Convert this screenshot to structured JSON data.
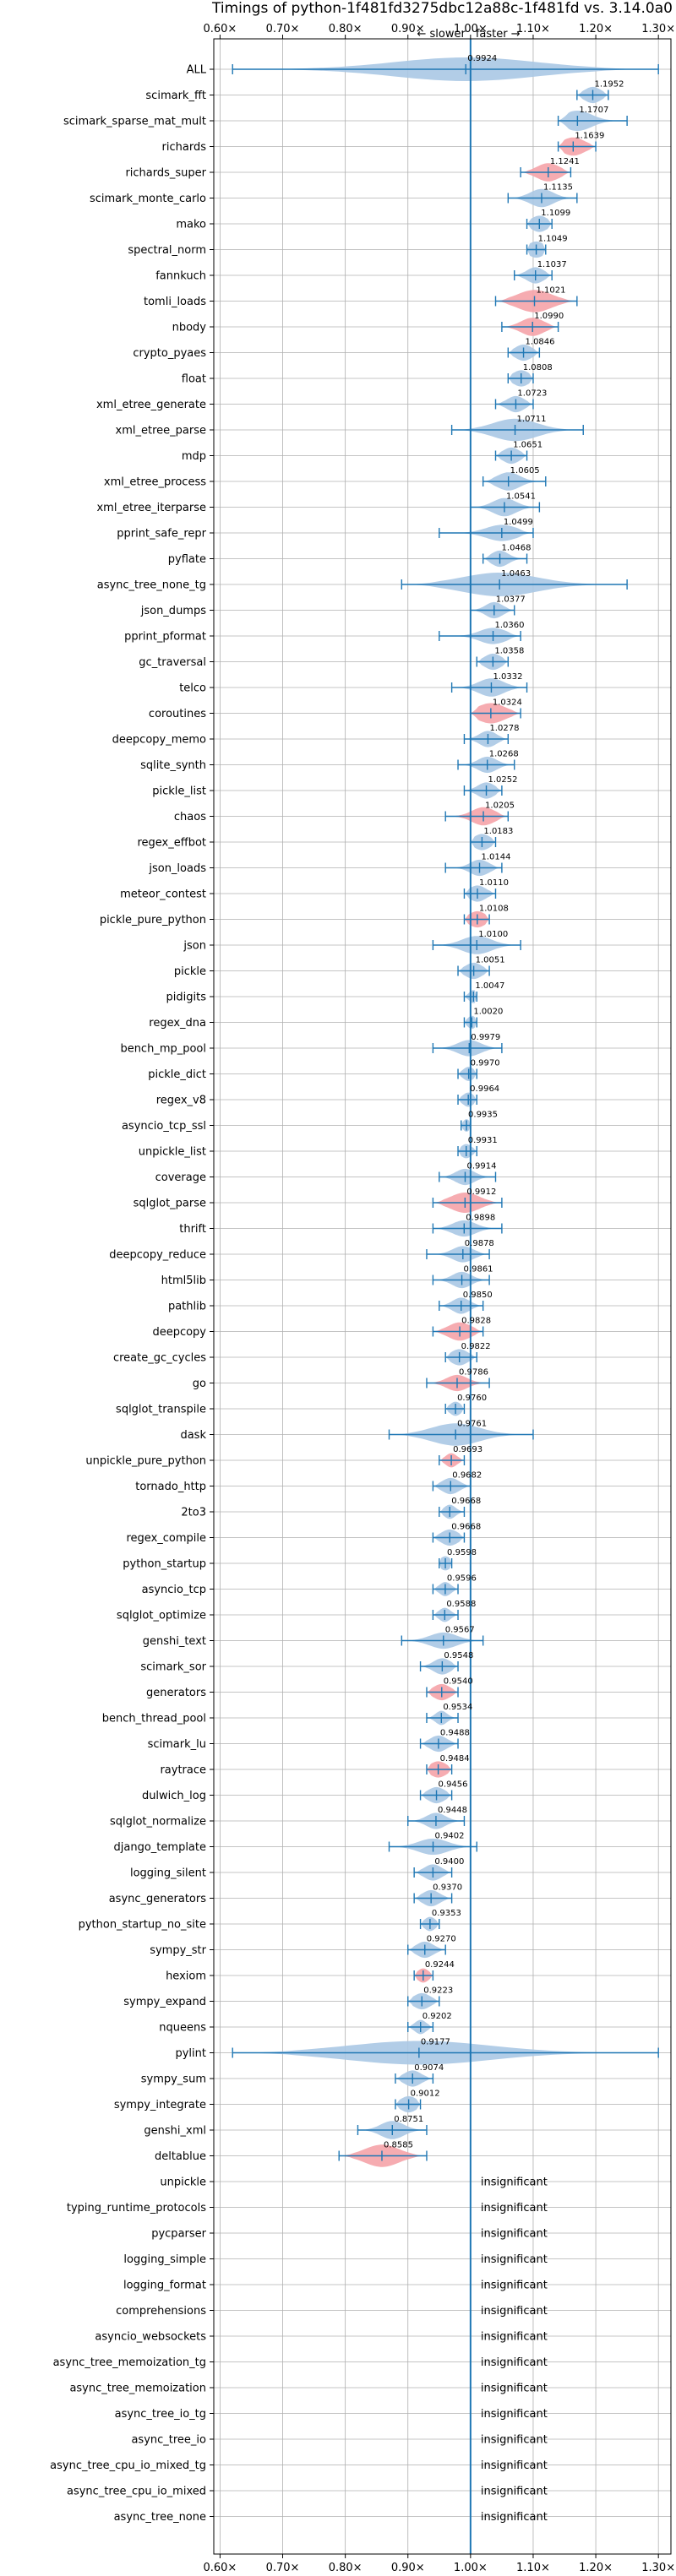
{
  "chart_data": {
    "type": "violin",
    "title": "Timings of python-1f481fd3275dbc12a88c-1f481fd vs. 3.14.0a0",
    "xlabel": "",
    "ylabel": "",
    "x_ticks": [
      "0.60×",
      "0.70×",
      "0.80×",
      "0.90×",
      "1.00×",
      "1.10×",
      "1.20×",
      "1.30×"
    ],
    "x_tick_values": [
      0.6,
      0.7,
      0.8,
      0.9,
      1.0,
      1.1,
      1.2,
      1.3
    ],
    "xlim": [
      0.59,
      1.32
    ],
    "grid": true,
    "reference_line": 1.0,
    "direction_labels": {
      "slower": "slower",
      "faster": "faster"
    },
    "insignificant_label": "insignificant",
    "colors": {
      "blue_violin": "#aac8e4",
      "red_violin": "#f5a3a8",
      "line": "#1f77b4",
      "grid": "#b0b0b0"
    },
    "benchmarks": [
      {
        "name": "ALL",
        "value": 0.9924,
        "label": "0.9924",
        "lo": 0.62,
        "hi": 1.3,
        "w": 0.1,
        "color": "blue"
      },
      {
        "name": "scimark_fft",
        "value": 1.1952,
        "label": "1.1952",
        "lo": 1.17,
        "hi": 1.22,
        "w": 0.03,
        "color": "blue"
      },
      {
        "name": "scimark_sparse_mat_mult",
        "value": 1.1707,
        "label": "1.1707",
        "lo": 1.14,
        "hi": 1.25,
        "w": 0.05,
        "color": "blue"
      },
      {
        "name": "richards",
        "value": 1.1639,
        "label": "1.1639",
        "lo": 1.14,
        "hi": 1.2,
        "w": 0.04,
        "color": "red"
      },
      {
        "name": "richards_super",
        "value": 1.1241,
        "label": "1.1241",
        "lo": 1.08,
        "hi": 1.16,
        "w": 0.04,
        "color": "red"
      },
      {
        "name": "scimark_monte_carlo",
        "value": 1.1135,
        "label": "1.1135",
        "lo": 1.06,
        "hi": 1.17,
        "w": 0.04,
        "color": "blue"
      },
      {
        "name": "mako",
        "value": 1.1099,
        "label": "1.1099",
        "lo": 1.09,
        "hi": 1.13,
        "w": 0.03,
        "color": "blue"
      },
      {
        "name": "spectral_norm",
        "value": 1.1049,
        "label": "1.1049",
        "lo": 1.09,
        "hi": 1.12,
        "w": 0.03,
        "color": "blue"
      },
      {
        "name": "fannkuch",
        "value": 1.1037,
        "label": "1.1037",
        "lo": 1.07,
        "hi": 1.13,
        "w": 0.03,
        "color": "blue"
      },
      {
        "name": "tomli_loads",
        "value": 1.1021,
        "label": "1.1021",
        "lo": 1.04,
        "hi": 1.17,
        "w": 0.06,
        "color": "red"
      },
      {
        "name": "nbody",
        "value": 1.099,
        "label": "1.0990",
        "lo": 1.05,
        "hi": 1.14,
        "w": 0.04,
        "color": "red"
      },
      {
        "name": "crypto_pyaes",
        "value": 1.0846,
        "label": "1.0846",
        "lo": 1.06,
        "hi": 1.11,
        "w": 0.03,
        "color": "blue"
      },
      {
        "name": "float",
        "value": 1.0808,
        "label": "1.0808",
        "lo": 1.06,
        "hi": 1.1,
        "w": 0.03,
        "color": "blue"
      },
      {
        "name": "xml_etree_generate",
        "value": 1.0723,
        "label": "1.0723",
        "lo": 1.04,
        "hi": 1.1,
        "w": 0.03,
        "color": "blue"
      },
      {
        "name": "xml_etree_parse",
        "value": 1.0711,
        "label": "1.0711",
        "lo": 0.97,
        "hi": 1.18,
        "w": 0.06,
        "color": "blue"
      },
      {
        "name": "mdp",
        "value": 1.0651,
        "label": "1.0651",
        "lo": 1.04,
        "hi": 1.09,
        "w": 0.03,
        "color": "blue"
      },
      {
        "name": "xml_etree_process",
        "value": 1.0605,
        "label": "1.0605",
        "lo": 1.02,
        "hi": 1.12,
        "w": 0.04,
        "color": "blue"
      },
      {
        "name": "xml_etree_iterparse",
        "value": 1.0541,
        "label": "1.0541",
        "lo": 1.0,
        "hi": 1.11,
        "w": 0.04,
        "color": "blue"
      },
      {
        "name": "pprint_safe_repr",
        "value": 1.0499,
        "label": "1.0499",
        "lo": 0.95,
        "hi": 1.1,
        "w": 0.03,
        "color": "blue"
      },
      {
        "name": "pyflate",
        "value": 1.0468,
        "label": "1.0468",
        "lo": 1.02,
        "hi": 1.09,
        "w": 0.03,
        "color": "blue"
      },
      {
        "name": "async_tree_none_tg",
        "value": 1.0463,
        "label": "1.0463",
        "lo": 0.89,
        "hi": 1.25,
        "w": 0.07,
        "color": "blue"
      },
      {
        "name": "json_dumps",
        "value": 1.0377,
        "label": "1.0377",
        "lo": 1.0,
        "hi": 1.07,
        "w": 0.03,
        "color": "blue"
      },
      {
        "name": "pprint_pformat",
        "value": 1.036,
        "label": "1.0360",
        "lo": 0.95,
        "hi": 1.08,
        "w": 0.03,
        "color": "blue"
      },
      {
        "name": "gc_traversal",
        "value": 1.0358,
        "label": "1.0358",
        "lo": 1.01,
        "hi": 1.06,
        "w": 0.03,
        "color": "blue"
      },
      {
        "name": "telco",
        "value": 1.0332,
        "label": "1.0332",
        "lo": 0.97,
        "hi": 1.09,
        "w": 0.04,
        "color": "blue"
      },
      {
        "name": "coroutines",
        "value": 1.0324,
        "label": "1.0324",
        "lo": 1.0,
        "hi": 1.08,
        "w": 0.05,
        "color": "red"
      },
      {
        "name": "deepcopy_memo",
        "value": 1.0278,
        "label": "1.0278",
        "lo": 0.99,
        "hi": 1.06,
        "w": 0.03,
        "color": "blue"
      },
      {
        "name": "sqlite_synth",
        "value": 1.0268,
        "label": "1.0268",
        "lo": 0.98,
        "hi": 1.07,
        "w": 0.03,
        "color": "blue"
      },
      {
        "name": "pickle_list",
        "value": 1.0252,
        "label": "1.0252",
        "lo": 0.99,
        "hi": 1.05,
        "w": 0.03,
        "color": "blue"
      },
      {
        "name": "chaos",
        "value": 1.0205,
        "label": "1.0205",
        "lo": 0.96,
        "hi": 1.06,
        "w": 0.04,
        "color": "red"
      },
      {
        "name": "regex_effbot",
        "value": 1.0183,
        "label": "1.0183",
        "lo": 1.0,
        "hi": 1.04,
        "w": 0.03,
        "color": "blue"
      },
      {
        "name": "json_loads",
        "value": 1.0144,
        "label": "1.0144",
        "lo": 0.96,
        "hi": 1.05,
        "w": 0.03,
        "color": "blue"
      },
      {
        "name": "meteor_contest",
        "value": 1.011,
        "label": "1.0110",
        "lo": 0.99,
        "hi": 1.04,
        "w": 0.03,
        "color": "blue"
      },
      {
        "name": "pickle_pure_python",
        "value": 1.0108,
        "label": "1.0108",
        "lo": 0.99,
        "hi": 1.03,
        "w": 0.03,
        "color": "red"
      },
      {
        "name": "json",
        "value": 1.01,
        "label": "1.0100",
        "lo": 0.94,
        "hi": 1.08,
        "w": 0.04,
        "color": "blue"
      },
      {
        "name": "pickle",
        "value": 1.0051,
        "label": "1.0051",
        "lo": 0.98,
        "hi": 1.03,
        "w": 0.03,
        "color": "blue"
      },
      {
        "name": "pidigits",
        "value": 1.0047,
        "label": "1.0047",
        "lo": 0.99,
        "hi": 1.01,
        "w": 0.015,
        "color": "blue"
      },
      {
        "name": "regex_dna",
        "value": 1.002,
        "label": "1.0020",
        "lo": 0.99,
        "hi": 1.01,
        "w": 0.015,
        "color": "blue"
      },
      {
        "name": "bench_mp_pool",
        "value": 0.9979,
        "label": "0.9979",
        "lo": 0.94,
        "hi": 1.05,
        "w": 0.03,
        "color": "blue"
      },
      {
        "name": "pickle_dict",
        "value": 0.997,
        "label": "0.9970",
        "lo": 0.98,
        "hi": 1.01,
        "w": 0.02,
        "color": "blue"
      },
      {
        "name": "regex_v8",
        "value": 0.9964,
        "label": "0.9964",
        "lo": 0.98,
        "hi": 1.01,
        "w": 0.02,
        "color": "blue"
      },
      {
        "name": "asyncio_tcp_ssl",
        "value": 0.9935,
        "label": "0.9935",
        "lo": 0.985,
        "hi": 1.0,
        "w": 0.012,
        "color": "blue"
      },
      {
        "name": "unpickle_list",
        "value": 0.9931,
        "label": "0.9931",
        "lo": 0.98,
        "hi": 1.01,
        "w": 0.02,
        "color": "blue"
      },
      {
        "name": "coverage",
        "value": 0.9914,
        "label": "0.9914",
        "lo": 0.95,
        "hi": 1.04,
        "w": 0.03,
        "color": "blue"
      },
      {
        "name": "sqlglot_parse",
        "value": 0.9912,
        "label": "0.9912",
        "lo": 0.94,
        "hi": 1.05,
        "w": 0.05,
        "color": "red"
      },
      {
        "name": "thrift",
        "value": 0.9898,
        "label": "0.9898",
        "lo": 0.94,
        "hi": 1.05,
        "w": 0.03,
        "color": "blue"
      },
      {
        "name": "deepcopy_reduce",
        "value": 0.9878,
        "label": "0.9878",
        "lo": 0.93,
        "hi": 1.03,
        "w": 0.03,
        "color": "blue"
      },
      {
        "name": "html5lib",
        "value": 0.9861,
        "label": "0.9861",
        "lo": 0.94,
        "hi": 1.03,
        "w": 0.03,
        "color": "blue"
      },
      {
        "name": "pathlib",
        "value": 0.985,
        "label": "0.9850",
        "lo": 0.95,
        "hi": 1.02,
        "w": 0.03,
        "color": "blue"
      },
      {
        "name": "deepcopy",
        "value": 0.9828,
        "label": "0.9828",
        "lo": 0.94,
        "hi": 1.02,
        "w": 0.04,
        "color": "red"
      },
      {
        "name": "create_gc_cycles",
        "value": 0.9822,
        "label": "0.9822",
        "lo": 0.96,
        "hi": 1.01,
        "w": 0.03,
        "color": "blue"
      },
      {
        "name": "go",
        "value": 0.9786,
        "label": "0.9786",
        "lo": 0.93,
        "hi": 1.03,
        "w": 0.03,
        "color": "red"
      },
      {
        "name": "sqlglot_transpile",
        "value": 0.976,
        "label": "0.9760",
        "lo": 0.96,
        "hi": 0.99,
        "w": 0.02,
        "color": "blue"
      },
      {
        "name": "dask",
        "value": 0.9761,
        "label": "0.9761",
        "lo": 0.87,
        "hi": 1.1,
        "w": 0.06,
        "color": "blue"
      },
      {
        "name": "unpickle_pure_python",
        "value": 0.9693,
        "label": "0.9693",
        "lo": 0.95,
        "hi": 0.99,
        "w": 0.02,
        "color": "red"
      },
      {
        "name": "tornado_http",
        "value": 0.9682,
        "label": "0.9682",
        "lo": 0.94,
        "hi": 1.0,
        "w": 0.03,
        "color": "blue"
      },
      {
        "name": "2to3",
        "value": 0.9668,
        "label": "0.9668",
        "lo": 0.95,
        "hi": 0.99,
        "w": 0.02,
        "color": "blue"
      },
      {
        "name": "regex_compile",
        "value": 0.9668,
        "label": "0.9668",
        "lo": 0.94,
        "hi": 0.99,
        "w": 0.03,
        "color": "blue"
      },
      {
        "name": "python_startup",
        "value": 0.9598,
        "label": "0.9598",
        "lo": 0.95,
        "hi": 0.97,
        "w": 0.02,
        "color": "blue"
      },
      {
        "name": "asyncio_tcp",
        "value": 0.9596,
        "label": "0.9596",
        "lo": 0.94,
        "hi": 0.98,
        "w": 0.02,
        "color": "blue"
      },
      {
        "name": "sqlglot_optimize",
        "value": 0.9588,
        "label": "0.9588",
        "lo": 0.94,
        "hi": 0.98,
        "w": 0.02,
        "color": "blue"
      },
      {
        "name": "genshi_text",
        "value": 0.9567,
        "label": "0.9567",
        "lo": 0.89,
        "hi": 1.02,
        "w": 0.03,
        "color": "blue"
      },
      {
        "name": "scimark_sor",
        "value": 0.9548,
        "label": "0.9548",
        "lo": 0.92,
        "hi": 0.98,
        "w": 0.03,
        "color": "blue"
      },
      {
        "name": "generators",
        "value": 0.954,
        "label": "0.9540",
        "lo": 0.93,
        "hi": 0.98,
        "w": 0.03,
        "color": "red"
      },
      {
        "name": "bench_thread_pool",
        "value": 0.9534,
        "label": "0.9534",
        "lo": 0.93,
        "hi": 0.98,
        "w": 0.02,
        "color": "blue"
      },
      {
        "name": "scimark_lu",
        "value": 0.9488,
        "label": "0.9488",
        "lo": 0.92,
        "hi": 0.98,
        "w": 0.03,
        "color": "blue"
      },
      {
        "name": "raytrace",
        "value": 0.9484,
        "label": "0.9484",
        "lo": 0.93,
        "hi": 0.97,
        "w": 0.03,
        "color": "red"
      },
      {
        "name": "dulwich_log",
        "value": 0.9456,
        "label": "0.9456",
        "lo": 0.92,
        "hi": 0.97,
        "w": 0.03,
        "color": "blue"
      },
      {
        "name": "sqlglot_normalize",
        "value": 0.9448,
        "label": "0.9448",
        "lo": 0.9,
        "hi": 0.99,
        "w": 0.03,
        "color": "blue"
      },
      {
        "name": "django_template",
        "value": 0.9402,
        "label": "0.9402",
        "lo": 0.87,
        "hi": 1.01,
        "w": 0.03,
        "color": "blue"
      },
      {
        "name": "logging_silent",
        "value": 0.94,
        "label": "0.9400",
        "lo": 0.91,
        "hi": 0.97,
        "w": 0.03,
        "color": "blue"
      },
      {
        "name": "async_generators",
        "value": 0.937,
        "label": "0.9370",
        "lo": 0.91,
        "hi": 0.97,
        "w": 0.03,
        "color": "blue"
      },
      {
        "name": "python_startup_no_site",
        "value": 0.9353,
        "label": "0.9353",
        "lo": 0.92,
        "hi": 0.95,
        "w": 0.02,
        "color": "blue"
      },
      {
        "name": "sympy_str",
        "value": 0.927,
        "label": "0.9270",
        "lo": 0.9,
        "hi": 0.96,
        "w": 0.03,
        "color": "blue"
      },
      {
        "name": "hexiom",
        "value": 0.9244,
        "label": "0.9244",
        "lo": 0.91,
        "hi": 0.94,
        "w": 0.02,
        "color": "red"
      },
      {
        "name": "sympy_expand",
        "value": 0.9223,
        "label": "0.9223",
        "lo": 0.9,
        "hi": 0.95,
        "w": 0.03,
        "color": "blue"
      },
      {
        "name": "nqueens",
        "value": 0.9202,
        "label": "0.9202",
        "lo": 0.9,
        "hi": 0.94,
        "w": 0.02,
        "color": "blue"
      },
      {
        "name": "pylint",
        "value": 0.9177,
        "label": "0.9177",
        "lo": 0.62,
        "hi": 1.3,
        "w": 0.08,
        "color": "blue"
      },
      {
        "name": "sympy_sum",
        "value": 0.9074,
        "label": "0.9074",
        "lo": 0.88,
        "hi": 0.94,
        "w": 0.03,
        "color": "blue"
      },
      {
        "name": "sympy_integrate",
        "value": 0.9012,
        "label": "0.9012",
        "lo": 0.88,
        "hi": 0.92,
        "w": 0.03,
        "color": "blue"
      },
      {
        "name": "genshi_xml",
        "value": 0.8751,
        "label": "0.8751",
        "lo": 0.82,
        "hi": 0.93,
        "w": 0.04,
        "color": "blue"
      },
      {
        "name": "deltablue",
        "value": 0.8585,
        "label": "0.8585",
        "lo": 0.79,
        "hi": 0.93,
        "w": 0.06,
        "color": "red"
      },
      {
        "name": "unpickle",
        "value": null
      },
      {
        "name": "typing_runtime_protocols",
        "value": null
      },
      {
        "name": "pycparser",
        "value": null
      },
      {
        "name": "logging_simple",
        "value": null
      },
      {
        "name": "logging_format",
        "value": null
      },
      {
        "name": "comprehensions",
        "value": null
      },
      {
        "name": "asyncio_websockets",
        "value": null
      },
      {
        "name": "async_tree_memoization_tg",
        "value": null
      },
      {
        "name": "async_tree_memoization",
        "value": null
      },
      {
        "name": "async_tree_io_tg",
        "value": null
      },
      {
        "name": "async_tree_io",
        "value": null
      },
      {
        "name": "async_tree_cpu_io_mixed_tg",
        "value": null
      },
      {
        "name": "async_tree_cpu_io_mixed",
        "value": null
      },
      {
        "name": "async_tree_none",
        "value": null
      }
    ]
  }
}
